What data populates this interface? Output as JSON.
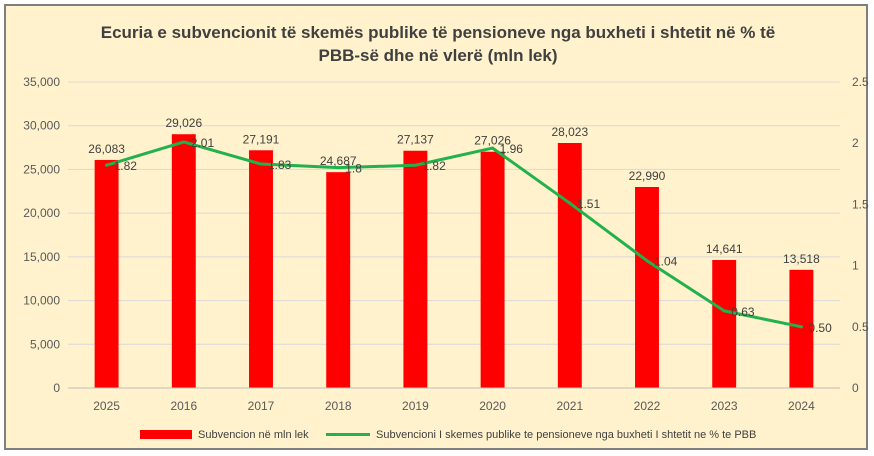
{
  "chart_data": {
    "type": "bar",
    "title_line1": "Ecuria e subvencionit të skemës publike të pensioneve nga buxheti i shtetit në % të",
    "title_line2": "PBB-së dhe në vlerë (mln lek)",
    "categories": [
      "2025",
      "2016",
      "2017",
      "2018",
      "2019",
      "2020",
      "2021",
      "2022",
      "2023",
      "2024"
    ],
    "series": [
      {
        "name": "Subvencion në mln lek",
        "type": "bar",
        "axis": "left",
        "color": "#ff0000",
        "values": [
          26083,
          29026,
          27191,
          24687,
          27137,
          27026,
          28023,
          22990,
          14641,
          13518
        ],
        "labels": [
          "26,083",
          "29,026",
          "27,191",
          "24,687",
          "27,137",
          "27,026",
          "28,023",
          "22,990",
          "14,641",
          "13,518"
        ]
      },
      {
        "name": "Subvencioni I skemes publike te pensioneve nga buxheti I shtetit ne % te PBB",
        "type": "line",
        "axis": "right",
        "color": "#22b14c",
        "values": [
          1.82,
          2.01,
          1.83,
          1.8,
          1.82,
          1.96,
          1.51,
          1.04,
          0.63,
          0.5
        ],
        "labels": [
          "1.82",
          "2.01",
          "1.83",
          "1.8",
          "1.82",
          "1.96",
          "1.51",
          "1.04",
          "0.63",
          "0.50"
        ]
      }
    ],
    "y_left": {
      "lim": [
        0,
        35000
      ],
      "ticks": [
        0,
        5000,
        10000,
        15000,
        20000,
        25000,
        30000,
        35000
      ],
      "tick_labels": [
        "0",
        "5,000",
        "10,000",
        "15,000",
        "20,000",
        "25,000",
        "30,000",
        "35,000"
      ]
    },
    "y_right": {
      "lim": [
        0,
        2.5
      ],
      "ticks": [
        0,
        0.5,
        1,
        1.5,
        2,
        2.5
      ],
      "tick_labels": [
        "0",
        "0.5",
        "1",
        "1.5",
        "2",
        "2.5"
      ]
    },
    "grid": true,
    "legend_position": "bottom",
    "colors": {
      "background": "#fff2cc",
      "grid": "#d9d9d9",
      "bar": "#ff0000",
      "line": "#22b14c"
    }
  }
}
